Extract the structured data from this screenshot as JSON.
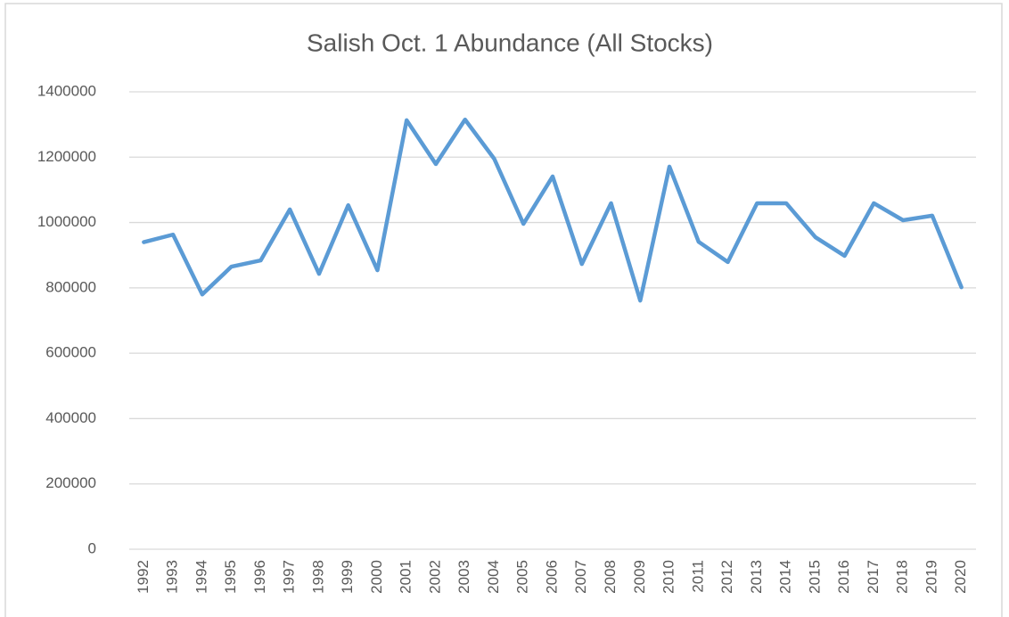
{
  "chart_data": {
    "type": "line",
    "title": "Salish Oct. 1 Abundance (All Stocks)",
    "categories": [
      "1992",
      "1993",
      "1994",
      "1995",
      "1996",
      "1997",
      "1998",
      "1999",
      "2000",
      "2001",
      "2002",
      "2003",
      "2004",
      "2005",
      "2006",
      "2007",
      "2008",
      "2009",
      "2010",
      "2011",
      "2012",
      "2013",
      "2014",
      "2015",
      "2016",
      "2017",
      "2018",
      "2019",
      "2020"
    ],
    "values": [
      940000,
      963000,
      780000,
      865000,
      884000,
      1040000,
      843000,
      1053000,
      854000,
      1313000,
      1179000,
      1315000,
      1195000,
      996000,
      1141000,
      873000,
      1059000,
      761000,
      1171000,
      941000,
      879000,
      1059000,
      1059000,
      955000,
      898000,
      1059000,
      1007000,
      1021000,
      802000
    ],
    "color": "#5b9bd5",
    "ylim": [
      0,
      1400000
    ],
    "yticks": [
      0,
      200000,
      400000,
      600000,
      800000,
      1000000,
      1200000,
      1400000
    ],
    "grid": true
  }
}
